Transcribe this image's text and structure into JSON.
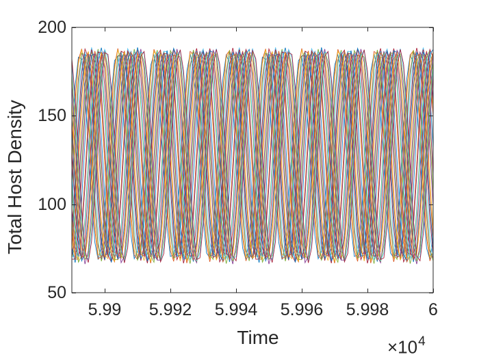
{
  "figure": {
    "background": "#ffffff",
    "axis_color": "#262626",
    "text_color": "#262626"
  },
  "chart_data": {
    "type": "line",
    "title": "",
    "xlabel": "Time",
    "ylabel": "Total Host Density",
    "grid": false,
    "legend": false,
    "box": true,
    "x_axis": {
      "min": 59890,
      "max": 60000,
      "ticks": [
        59900,
        59920,
        59940,
        59960,
        59980,
        60000
      ],
      "tick_labels": [
        "5.99",
        "5.992",
        "5.994",
        "5.996",
        "5.998",
        "6"
      ],
      "exponent_prefix": "×10",
      "exponent": "4"
    },
    "y_axis": {
      "min": 50,
      "max": 200,
      "ticks": [
        50,
        100,
        150,
        200
      ],
      "tick_labels": [
        "50",
        "100",
        "150",
        "200"
      ]
    },
    "series_model": {
      "description": "Ensemble of ~28 phase-shifted oscillatory host-density trajectories; each approximated by y(t) = mean + amplitude*cos(2*pi*(t - peak_time)/period), sampled at integer t (piecewise-linear).",
      "num_series": 28,
      "period": 11.2,
      "first_peak_time": 59896.5,
      "phase_spread": 8.3,
      "phase_jitter": 0.5,
      "mean": 127.5,
      "mean_jitter": 1.0,
      "amplitude": 59.5,
      "amplitude_jitter": 1.5,
      "peak_value": 187,
      "trough_value": 68,
      "sample_step": 1,
      "line_width": 0.9
    },
    "palette": [
      "#0072BD",
      "#D95319",
      "#EDB120",
      "#7E2F8E",
      "#77AC30",
      "#4DBEEE",
      "#A2142F"
    ]
  }
}
